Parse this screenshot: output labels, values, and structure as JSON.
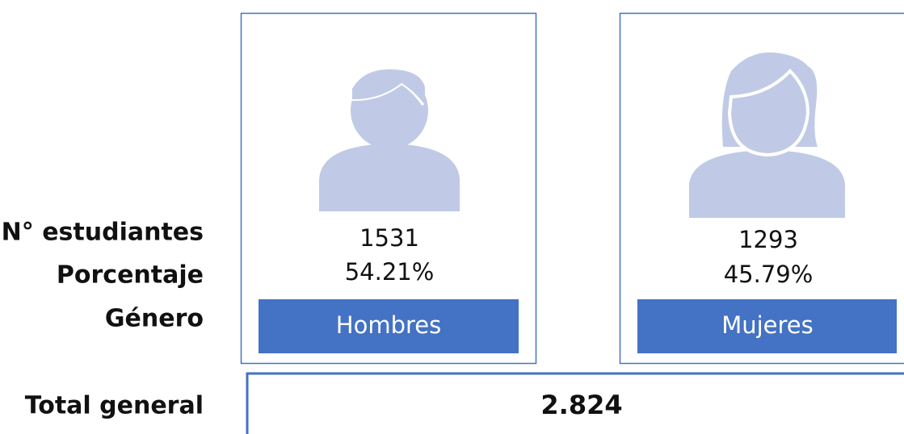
{
  "labels": {
    "count": "N° estudiantes",
    "percent": "Porcentaje",
    "gender": "Género",
    "total": "Total general"
  },
  "cards": [
    {
      "count": "1531",
      "percent": "54.21%",
      "gender": "Hombres"
    },
    {
      "count": "1293",
      "percent": "45.79%",
      "gender": "Mujeres"
    }
  ],
  "total": "2.824"
}
